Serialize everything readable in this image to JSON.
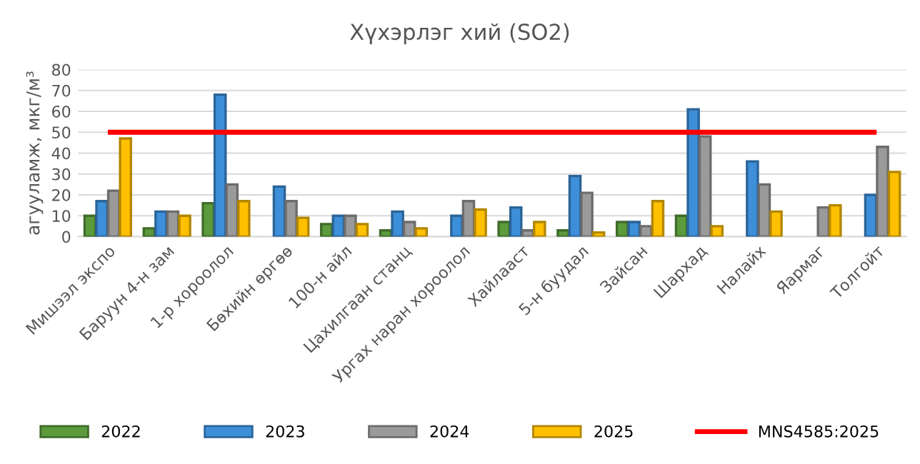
{
  "chart_data": {
    "type": "bar",
    "title": "Хүхэрлэг хий (SO2)",
    "ylabel": "агууламж, мкг/м³",
    "categories": [
      "Мишээл экспо",
      "Баруун 4-н зам",
      "1-р хороолол",
      "Бөхийн өргөө",
      "100-н айл",
      "Цахилгаан станц",
      "Ургах наран хороолол",
      "Хайлааст",
      "5-н буудал",
      "Зайсан",
      "Шархад",
      "Налайх",
      "Яармаг",
      "Толгойт"
    ],
    "series": [
      {
        "name": "2022",
        "color": "#5b9b3c",
        "values": [
          10,
          4,
          16,
          null,
          6,
          3,
          null,
          7,
          3,
          7,
          10,
          null,
          null,
          null
        ]
      },
      {
        "name": "2023",
        "color": "#3d8fd9",
        "values": [
          17,
          12,
          68,
          24,
          10,
          12,
          10,
          14,
          29,
          7,
          61,
          36,
          null,
          20
        ]
      },
      {
        "name": "2024",
        "color": "#9a9a9a",
        "values": [
          22,
          12,
          25,
          17,
          10,
          7,
          17,
          3,
          21,
          5,
          48,
          25,
          14,
          43
        ]
      },
      {
        "name": "2025",
        "color": "#ffc000",
        "values": [
          47,
          10,
          17,
          9,
          6,
          4,
          13,
          7,
          2,
          17,
          5,
          12,
          15,
          31
        ]
      },
      {
        "name": "MNS4585:2025",
        "type": "line",
        "color": "#ff0000",
        "values": [
          50,
          50,
          50,
          50,
          50,
          50,
          50,
          50,
          50,
          50,
          50,
          50,
          50,
          50
        ]
      }
    ],
    "ylim": [
      0,
      80
    ],
    "yticks": [
      0,
      10,
      20,
      30,
      40,
      50,
      60,
      70,
      80
    ],
    "grid": "y",
    "legend": "bottom"
  }
}
